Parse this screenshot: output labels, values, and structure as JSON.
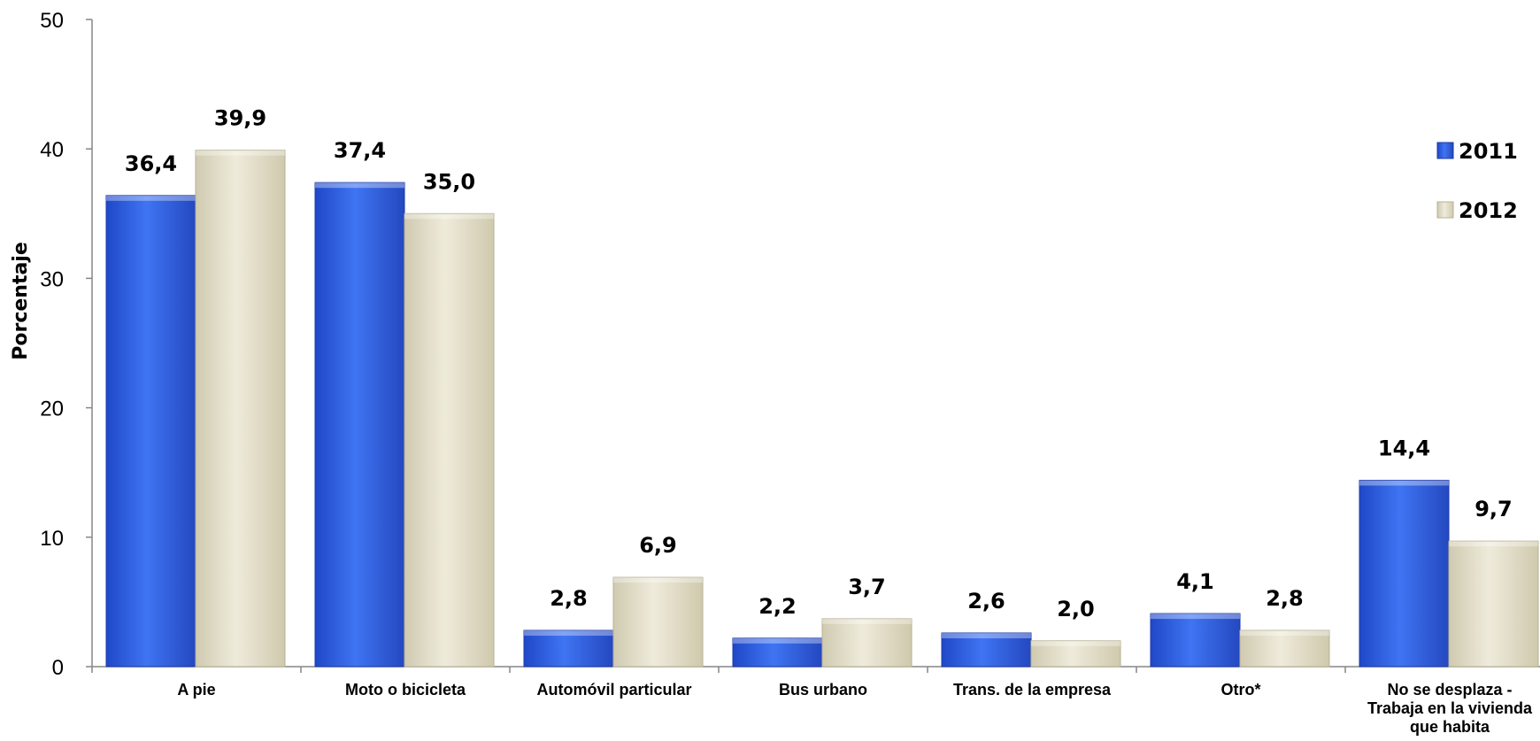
{
  "chart_data": {
    "type": "bar",
    "ylabel": "Porcentaje",
    "ylim": [
      0,
      50
    ],
    "yticks": [
      0,
      10,
      20,
      30,
      40,
      50
    ],
    "grid": false,
    "legend_position": "right",
    "categories": [
      [
        "A pie"
      ],
      [
        "Moto o bicicleta"
      ],
      [
        "Automóvil particular"
      ],
      [
        "Bus urbano"
      ],
      [
        "Trans. de la empresa"
      ],
      [
        "Otro*"
      ],
      [
        "No se desplaza -",
        "Trabaja en la vivienda",
        "que habita"
      ]
    ],
    "series": [
      {
        "name": "2011",
        "color": "#2f5fe0",
        "values": [
          36.4,
          37.4,
          2.8,
          2.2,
          2.6,
          4.1,
          14.4
        ],
        "labels": [
          "36,4",
          "37,4",
          "2,8",
          "2,2",
          "2,6",
          "4,1",
          "14,4"
        ]
      },
      {
        "name": "2012",
        "color": "#e4e0cd",
        "values": [
          39.9,
          35.0,
          6.9,
          3.7,
          2.0,
          2.8,
          9.7
        ],
        "labels": [
          "39,9",
          "35,0",
          "6,9",
          "3,7",
          "2,0",
          "2,8",
          "9,7"
        ]
      }
    ]
  }
}
